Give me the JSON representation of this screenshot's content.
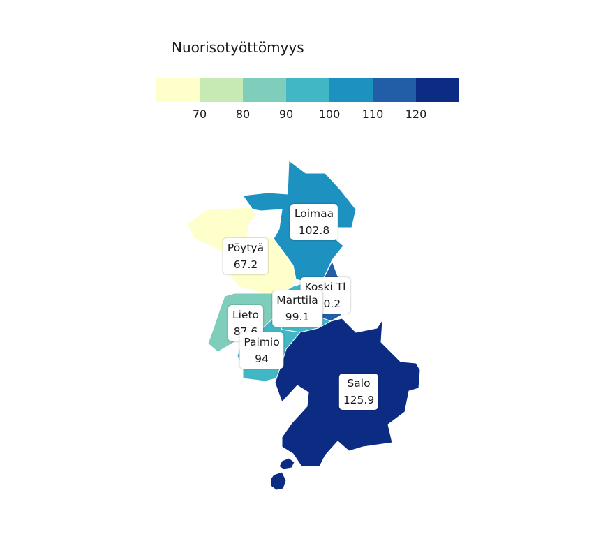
{
  "legend": {
    "title": "Nuorisotyöttömyys",
    "colors": [
      "#ffffcc",
      "#c7e9b4",
      "#7fcdbb",
      "#41b6c4",
      "#1d91c0",
      "#225ea8",
      "#0c2c84"
    ],
    "ticks": [
      "70",
      "80",
      "90",
      "100",
      "110",
      "120"
    ]
  },
  "regions": [
    {
      "name": "Loimaa",
      "value": "102.8",
      "color": "#1d91c0"
    },
    {
      "name": "Pöytyä",
      "value": "67.2",
      "color": "#ffffcc"
    },
    {
      "name": "Koski Tl",
      "value": "110.2",
      "color": "#225ea8"
    },
    {
      "name": "Marttila",
      "value": "99.1",
      "color": "#41b6c4"
    },
    {
      "name": "Lieto",
      "value": "87.6",
      "color": "#7fcdbb"
    },
    {
      "name": "Paimio",
      "value": "94",
      "color": "#41b6c4"
    },
    {
      "name": "Salo",
      "value": "125.9",
      "color": "#0c2c84"
    }
  ]
}
